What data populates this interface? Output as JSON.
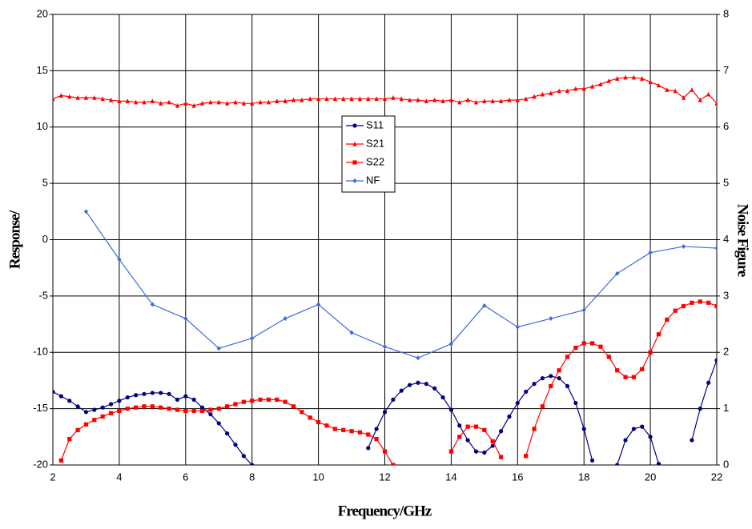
{
  "chart_data": {
    "type": "line",
    "x_label": "Frequency/GHz",
    "y_label": "Response/",
    "y2_label": "Noise Figure",
    "x": [
      2,
      2.25,
      2.5,
      2.75,
      3,
      3.25,
      3.5,
      3.75,
      4,
      4.25,
      4.5,
      4.75,
      5,
      5.25,
      5.5,
      5.75,
      6,
      6.25,
      6.5,
      6.75,
      7,
      7.25,
      7.5,
      7.75,
      8,
      8.25,
      8.5,
      8.75,
      9,
      9.25,
      9.5,
      9.75,
      10,
      10.25,
      10.5,
      10.75,
      11,
      11.25,
      11.5,
      11.75,
      12,
      12.25,
      12.5,
      12.75,
      13,
      13.25,
      13.5,
      13.75,
      14,
      14.25,
      14.5,
      14.75,
      15,
      15.25,
      15.5,
      15.75,
      16,
      16.25,
      16.5,
      16.75,
      17,
      17.25,
      17.5,
      17.75,
      18,
      18.25,
      18.5,
      18.75,
      19,
      19.25,
      19.5,
      19.75,
      20,
      20.25,
      20.5,
      20.75,
      21,
      21.25,
      21.5,
      21.75,
      22
    ],
    "series": [
      {
        "name": "S11",
        "color": "#000080",
        "marker": "circle",
        "values": [
          -13.5,
          -13.9,
          -14.3,
          -14.8,
          -15.3,
          -15.1,
          -14.9,
          -14.6,
          -14.3,
          -14.0,
          -13.8,
          -13.7,
          -13.6,
          -13.6,
          -13.7,
          -14.2,
          -13.9,
          -14.2,
          -14.9,
          -15.5,
          -16.3,
          -17.2,
          -18.2,
          -19.2,
          -20,
          null,
          null,
          null,
          null,
          null,
          null,
          null,
          null,
          null,
          null,
          null,
          null,
          null,
          -18.5,
          -16.8,
          -15.3,
          -14.2,
          -13.4,
          -12.9,
          -12.7,
          -12.8,
          -13.2,
          -14.0,
          -15.1,
          -16.5,
          -17.8,
          -18.8,
          -18.9,
          -18.3,
          -17.0,
          -15.7,
          -14.5,
          -13.5,
          -12.8,
          -12.3,
          -12.1,
          -12.3,
          -13.0,
          -14.5,
          -16.8,
          -19.6,
          null,
          null,
          -20,
          -17.8,
          -16.8,
          -16.6,
          -17.5,
          -19.9,
          null,
          null,
          null,
          -17.8,
          -15.0,
          -12.7,
          -10.7
        ]
      },
      {
        "name": "S21",
        "color": "#ff0000",
        "marker": "triangle",
        "values": [
          12.5,
          12.8,
          12.7,
          12.6,
          12.6,
          12.6,
          12.5,
          12.4,
          12.3,
          12.3,
          12.2,
          12.2,
          12.3,
          12.1,
          12.2,
          11.9,
          12.1,
          11.9,
          12.1,
          12.2,
          12.2,
          12.1,
          12.2,
          12.1,
          12.1,
          12.2,
          12.2,
          12.3,
          12.3,
          12.4,
          12.4,
          12.5,
          12.5,
          12.5,
          12.5,
          12.5,
          12.5,
          12.5,
          12.5,
          12.5,
          12.5,
          12.6,
          12.5,
          12.4,
          12.4,
          12.3,
          12.4,
          12.3,
          12.4,
          12.2,
          12.4,
          12.2,
          12.3,
          12.3,
          12.3,
          12.4,
          12.4,
          12.5,
          12.7,
          12.9,
          13.0,
          13.2,
          13.2,
          13.4,
          13.4,
          13.6,
          13.8,
          14.1,
          14.3,
          14.4,
          14.4,
          14.3,
          14.0,
          13.7,
          13.3,
          13.2,
          12.6,
          13.3,
          12.4,
          12.9,
          12.1
        ]
      },
      {
        "name": "S22",
        "color": "#ff0000",
        "marker": "square",
        "values": [
          null,
          -19.6,
          -17.7,
          -16.9,
          -16.4,
          -16.0,
          -15.7,
          -15.4,
          -15.2,
          -15.0,
          -14.9,
          -14.8,
          -14.8,
          -14.9,
          -15.0,
          -15.1,
          -15.2,
          -15.2,
          -15.2,
          -15.1,
          -15.0,
          -14.8,
          -14.6,
          -14.4,
          -14.3,
          -14.2,
          -14.2,
          -14.2,
          -14.4,
          -14.8,
          -15.3,
          -15.8,
          -16.2,
          -16.5,
          -16.8,
          -16.9,
          -17.0,
          -17.1,
          -17.3,
          -17.7,
          -18.8,
          -20,
          null,
          null,
          null,
          null,
          null,
          null,
          -18.8,
          -17.5,
          -16.6,
          -16.6,
          -16.9,
          -17.9,
          -19.3,
          null,
          null,
          -19.2,
          -16.8,
          -14.8,
          -13.0,
          -11.6,
          -10.4,
          -9.6,
          -9.2,
          -9.2,
          -9.5,
          -10.4,
          -11.6,
          -12.2,
          -12.2,
          -11.5,
          -10.0,
          -8.4,
          -7.1,
          -6.3,
          -5.9,
          -5.6,
          -5.5,
          -5.6,
          -5.9
        ]
      },
      {
        "name": "NF",
        "color": "#3c6be0",
        "marker": "diamond",
        "axis": "y2",
        "x": [
          3,
          4,
          5,
          6,
          7,
          8,
          9,
          10,
          11,
          12,
          13,
          14,
          15,
          16,
          17,
          18,
          19,
          20,
          21,
          22
        ],
        "values": [
          4.5,
          3.65,
          2.85,
          2.6,
          2.07,
          2.25,
          2.6,
          2.85,
          2.35,
          2.1,
          1.9,
          2.15,
          2.83,
          2.45,
          2.6,
          2.75,
          3.4,
          3.77,
          3.88,
          3.85
        ]
      }
    ],
    "xlim": [
      2,
      22
    ],
    "xticks": [
      2,
      4,
      6,
      8,
      10,
      12,
      14,
      16,
      18,
      20,
      22
    ],
    "ylim": [
      -20,
      20
    ],
    "yticks": [
      -20,
      -15,
      -10,
      -5,
      0,
      5,
      10,
      15,
      20
    ],
    "y2lim": [
      0,
      8
    ],
    "y2ticks": [
      0,
      1,
      2,
      3,
      4,
      5,
      6,
      7,
      8
    ],
    "grid": true
  }
}
